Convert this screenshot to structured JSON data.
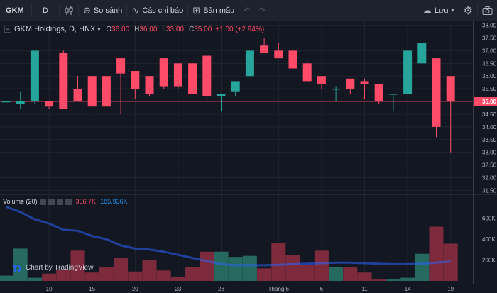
{
  "toolbar": {
    "symbol": "GKM",
    "interval": "D",
    "compare_label": "So sánh",
    "indicators_label": "Các chỉ báo",
    "templates_label": "Bản mẫu",
    "save_label": "Lưu"
  },
  "legend": {
    "name": "GKM Holdings, D, HNX",
    "o_label": "O",
    "o_value": "36.00",
    "h_label": "H",
    "h_value": "36.00",
    "l_label": "L",
    "l_value": "33.00",
    "c_label": "C",
    "c_value": "35.00",
    "change": "+1.00 (+2.94%)"
  },
  "volume_legend": {
    "label": "Volume (20)",
    "volume": "356.7K",
    "ma": "185.936K"
  },
  "watermark": "Chart by TradingView",
  "colors": {
    "up": "#26a69a",
    "down": "#ff4a68",
    "up_volume": "#26695f",
    "down_volume": "#7c2a3c",
    "ma_line": "#2962ff",
    "last_price": "#ff4a68",
    "background": "#131722"
  },
  "chart_data": {
    "type": "candlestick",
    "price_axis": {
      "ylim": [
        31.4,
        38.1
      ],
      "ticks": [
        "31.50",
        "32.00",
        "32.50",
        "33.00",
        "33.50",
        "34.00",
        "34.50",
        "35.00",
        "35.50",
        "36.00",
        "36.50",
        "37.00",
        "37.50",
        "38.00"
      ],
      "last_price": "35.00"
    },
    "volume_axis": {
      "ylim": [
        0,
        720000
      ],
      "ticks": [
        "200K",
        "400K",
        "600K"
      ]
    },
    "x_ticks": [
      {
        "label": "10",
        "index": 3
      },
      {
        "label": "15",
        "index": 6
      },
      {
        "label": "20",
        "index": 9
      },
      {
        "label": "23",
        "index": 12
      },
      {
        "label": "28",
        "index": 15
      },
      {
        "label": "Tháng 6",
        "index": 19
      },
      {
        "label": "6",
        "index": 22
      },
      {
        "label": "11",
        "index": 25
      },
      {
        "label": "14",
        "index": 28
      },
      {
        "label": "19",
        "index": 31
      }
    ],
    "candles": [
      {
        "o": 35.0,
        "h": 35.0,
        "l": 33.8,
        "c": 35.0,
        "v": 50000
      },
      {
        "o": 34.9,
        "h": 35.4,
        "l": 34.7,
        "c": 35.0,
        "v": 310000
      },
      {
        "o": 35.0,
        "h": 37.0,
        "l": 34.9,
        "c": 37.0,
        "v": 30000
      },
      {
        "o": 35.0,
        "h": 35.0,
        "l": 34.7,
        "c": 34.8,
        "v": 70000
      },
      {
        "o": 36.9,
        "h": 37.0,
        "l": 34.7,
        "c": 34.7,
        "v": 110000
      },
      {
        "o": 35.5,
        "h": 36.0,
        "l": 35.0,
        "c": 35.0,
        "v": 290000
      },
      {
        "o": 36.0,
        "h": 36.0,
        "l": 34.8,
        "c": 34.8,
        "v": 80000
      },
      {
        "o": 36.0,
        "h": 36.0,
        "l": 34.8,
        "c": 34.8,
        "v": 130000
      },
      {
        "o": 36.7,
        "h": 36.7,
        "l": 34.5,
        "c": 36.1,
        "v": 220000
      },
      {
        "o": 36.2,
        "h": 36.2,
        "l": 35.1,
        "c": 35.5,
        "v": 90000
      },
      {
        "o": 36.0,
        "h": 36.0,
        "l": 35.2,
        "c": 35.3,
        "v": 200000
      },
      {
        "o": 36.7,
        "h": 36.7,
        "l": 35.5,
        "c": 35.6,
        "v": 100000
      },
      {
        "o": 36.5,
        "h": 36.5,
        "l": 35.5,
        "c": 35.6,
        "v": 40000
      },
      {
        "o": 36.5,
        "h": 36.5,
        "l": 35.3,
        "c": 35.3,
        "v": 130000
      },
      {
        "o": 36.8,
        "h": 36.8,
        "l": 35.1,
        "c": 35.2,
        "v": 280000
      },
      {
        "o": 35.2,
        "h": 35.3,
        "l": 34.6,
        "c": 35.3,
        "v": 280000
      },
      {
        "o": 35.4,
        "h": 35.8,
        "l": 35.2,
        "c": 35.8,
        "v": 230000
      },
      {
        "o": 36.0,
        "h": 37.0,
        "l": 36.0,
        "c": 37.0,
        "v": 240000
      },
      {
        "o": 37.2,
        "h": 37.5,
        "l": 36.9,
        "c": 36.9,
        "v": 120000
      },
      {
        "o": 37.0,
        "h": 37.3,
        "l": 36.7,
        "c": 36.7,
        "v": 360000
      },
      {
        "o": 37.0,
        "h": 37.3,
        "l": 36.3,
        "c": 36.3,
        "v": 250000
      },
      {
        "o": 36.5,
        "h": 36.6,
        "l": 35.8,
        "c": 35.8,
        "v": 150000
      },
      {
        "o": 36.0,
        "h": 36.0,
        "l": 35.5,
        "c": 35.7,
        "v": 290000
      },
      {
        "o": 35.5,
        "h": 35.6,
        "l": 35.0,
        "c": 35.5,
        "v": 130000
      },
      {
        "o": 35.9,
        "h": 35.9,
        "l": 35.3,
        "c": 35.5,
        "v": 130000
      },
      {
        "o": 35.8,
        "h": 35.9,
        "l": 35.1,
        "c": 35.7,
        "v": 80000
      },
      {
        "o": 35.7,
        "h": 35.7,
        "l": 34.9,
        "c": 35.0,
        "v": 20000
      },
      {
        "o": 35.3,
        "h": 35.3,
        "l": 34.6,
        "c": 35.3,
        "v": 20000
      },
      {
        "o": 35.3,
        "h": 37.0,
        "l": 35.3,
        "c": 37.0,
        "v": 30000
      },
      {
        "o": 36.5,
        "h": 37.3,
        "l": 36.5,
        "c": 37.3,
        "v": 260000
      },
      {
        "o": 36.7,
        "h": 36.7,
        "l": 33.6,
        "c": 34.0,
        "v": 520000
      },
      {
        "o": 36.0,
        "h": 36.0,
        "l": 33.0,
        "c": 35.0,
        "v": 356700
      }
    ],
    "volume_ma": [
      710000,
      660000,
      590000,
      550000,
      490000,
      480000,
      430000,
      400000,
      340000,
      310000,
      300000,
      280000,
      250000,
      220000,
      190000,
      160000,
      150000,
      150000,
      150000,
      155000,
      160000,
      165000,
      170000,
      175000,
      175000,
      170000,
      165000,
      160000,
      160000,
      165000,
      175000,
      185936
    ]
  }
}
